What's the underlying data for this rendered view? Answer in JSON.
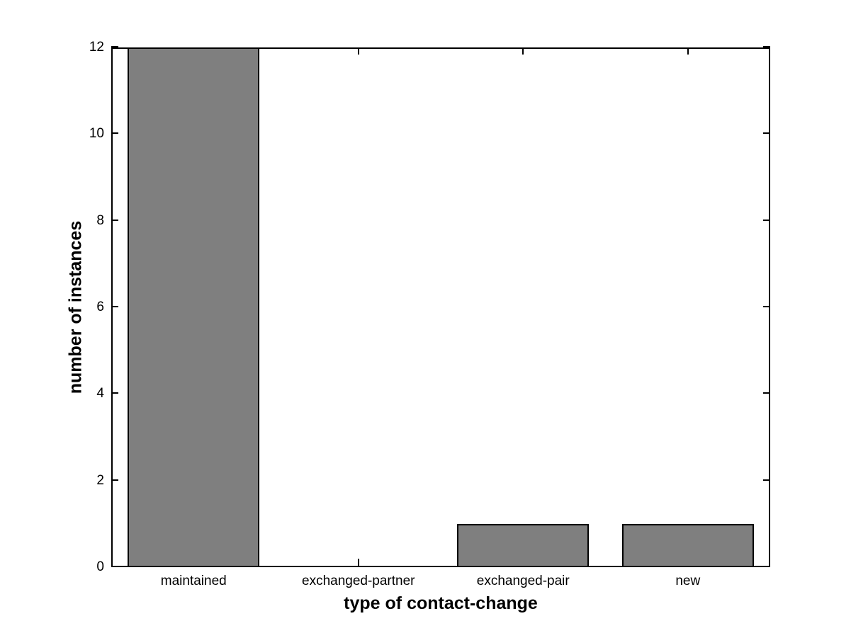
{
  "figure": {
    "background": "#ffffff"
  },
  "chart_data": {
    "type": "bar",
    "title": "",
    "xlabel": "type of contact-change",
    "ylabel": "number of instances",
    "categories": [
      "maintained",
      "exchanged-partner",
      "exchanged-pair",
      "new"
    ],
    "values": [
      12,
      0,
      1,
      1
    ],
    "ylim": [
      0,
      12
    ],
    "yticks": [
      0,
      2,
      4,
      6,
      8,
      10,
      12
    ],
    "bar_width_fraction": 0.8,
    "bar_color": "#7F7F7F",
    "bar_edge_color": "#000000",
    "axis_color": "#000000",
    "grid": false,
    "legend_position": "none"
  }
}
